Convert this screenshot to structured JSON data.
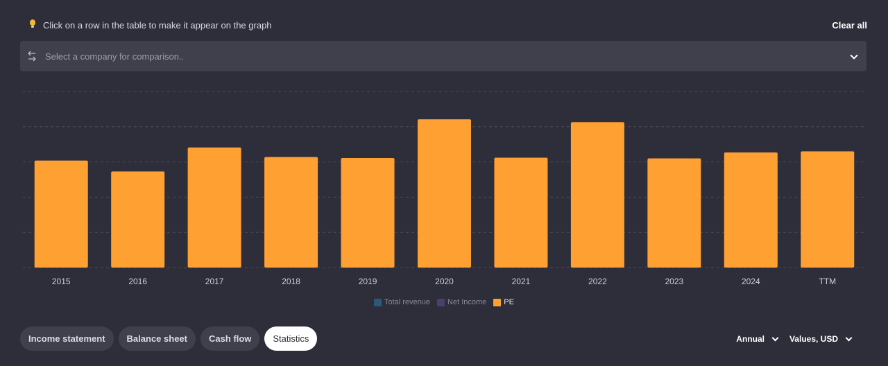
{
  "hint": {
    "text": "Click on a row in the table to make it appear on the graph",
    "icon": "lightbulb-icon"
  },
  "clear_all_label": "Clear all",
  "comparison": {
    "placeholder": "Select a company for comparison..",
    "icon": "swap-arrows-icon"
  },
  "legend": [
    {
      "label": "Total revenue",
      "color": "#2a5a7a",
      "text_color": "#8a8a98"
    },
    {
      "label": "Net Income",
      "color": "#4a3f6e",
      "text_color": "#8a8a98"
    },
    {
      "label": "PE",
      "color": "#ffa033",
      "text_color": "#e6e6ee"
    }
  ],
  "tabs": [
    {
      "label": "Income statement",
      "active": false
    },
    {
      "label": "Balance sheet",
      "active": false
    },
    {
      "label": "Cash flow",
      "active": false
    },
    {
      "label": "Statistics",
      "active": true
    }
  ],
  "period_select": "Annual",
  "values_select": "Values, USD",
  "colors": {
    "background": "#2e2e3a",
    "bar": "#ffa033",
    "grid": "#4b4b58",
    "tick_text": "#cfcfd8"
  },
  "chart_data": {
    "type": "bar",
    "categories": [
      "2015",
      "2016",
      "2017",
      "2018",
      "2019",
      "2020",
      "2021",
      "2022",
      "2023",
      "2024",
      "TTM"
    ],
    "series": [
      {
        "name": "PE",
        "values": [
          30.4,
          27.3,
          34.1,
          31.4,
          31.1,
          42.1,
          31.2,
          41.3,
          31.0,
          32.7,
          33.0
        ]
      }
    ],
    "ylim": [
      0,
      50
    ],
    "grid": true,
    "xlabel": "",
    "ylabel": ""
  }
}
